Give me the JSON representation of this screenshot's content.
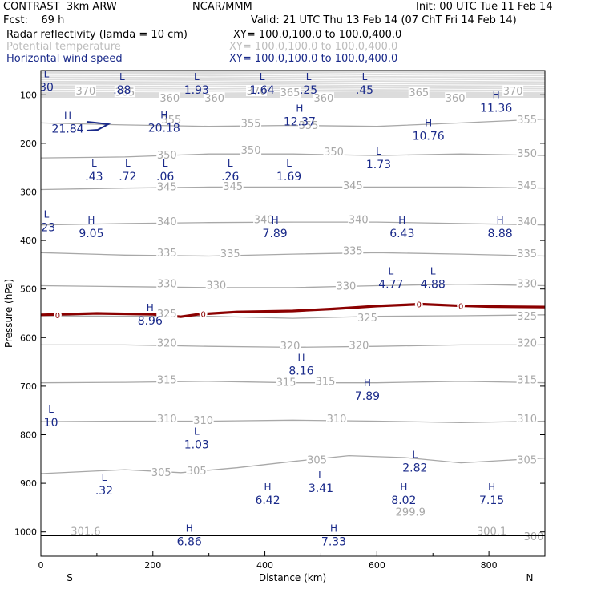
{
  "header": {
    "model": "CONTRAST  3km ARW",
    "org": "NCAR/MMM",
    "init": "Init: 00 UTC Tue 11 Feb 14",
    "fcst": "Fcst:    69 h",
    "valid": "Valid: 21 UTC Thu 13 Feb 14 (07 ChT Fri 14 Feb 14)",
    "fields": [
      {
        "name": "Radar reflectivity (lamda = 10 cm)",
        "xy": "XY= 100.0,100.0 to 100.0,400.0",
        "color": "#000000"
      },
      {
        "name": "Potential temperature",
        "xy": "XY= 100.0,100.0 to 100.0,400.0",
        "color": "#bdbdbd"
      },
      {
        "name": "Horizontal wind speed",
        "xy": "XY= 100.0,100.0 to 100.0,400.0",
        "color": "#1a2a8a"
      }
    ]
  },
  "chart_data": {
    "type": "cross-section",
    "xlabel": "Distance (km)",
    "ylabel": "Pressure (hPa)",
    "xlim": [
      0,
      900
    ],
    "ylim": [
      1050,
      50
    ],
    "x_ticks": [
      "0",
      "200",
      "400",
      "600",
      "800"
    ],
    "x_tick_values": [
      0,
      200,
      400,
      600,
      800
    ],
    "y_ticks": [
      "100",
      "200",
      "300",
      "400",
      "500",
      "600",
      "700",
      "800",
      "900",
      "1000"
    ],
    "y_tick_values": [
      100,
      200,
      300,
      400,
      500,
      600,
      700,
      800,
      900,
      1000
    ],
    "x_end_labels": {
      "left": "S",
      "right": "N"
    },
    "surface_pressure": 1007,
    "colors": {
      "theta": "#a8a8a8",
      "wind": "#1a2a8a",
      "zero_line": "#8b0000",
      "surface": "#000000"
    },
    "theta_contours": [
      {
        "value": 355,
        "points": [
          [
            0,
            158
          ],
          [
            150,
            162
          ],
          [
            300,
            165
          ],
          [
            450,
            163
          ],
          [
            600,
            165
          ],
          [
            750,
            158
          ],
          [
            900,
            150
          ]
        ]
      },
      {
        "value": 350,
        "points": [
          [
            0,
            230
          ],
          [
            150,
            228
          ],
          [
            300,
            222
          ],
          [
            450,
            222
          ],
          [
            600,
            225
          ],
          [
            750,
            222
          ],
          [
            900,
            225
          ]
        ]
      },
      {
        "value": 345,
        "points": [
          [
            0,
            295
          ],
          [
            150,
            292
          ],
          [
            300,
            290
          ],
          [
            450,
            290
          ],
          [
            600,
            290
          ],
          [
            750,
            290
          ],
          [
            900,
            292
          ]
        ]
      },
      {
        "value": 340,
        "points": [
          [
            0,
            368
          ],
          [
            150,
            365
          ],
          [
            300,
            363
          ],
          [
            450,
            362
          ],
          [
            600,
            362
          ],
          [
            750,
            365
          ],
          [
            900,
            368
          ]
        ]
      },
      {
        "value": 335,
        "points": [
          [
            0,
            425
          ],
          [
            150,
            430
          ],
          [
            300,
            432
          ],
          [
            450,
            428
          ],
          [
            600,
            425
          ],
          [
            750,
            428
          ],
          [
            900,
            432
          ]
        ]
      },
      {
        "value": 330,
        "points": [
          [
            0,
            493
          ],
          [
            150,
            495
          ],
          [
            300,
            497
          ],
          [
            450,
            497
          ],
          [
            600,
            493
          ],
          [
            750,
            490
          ],
          [
            900,
            493
          ]
        ]
      },
      {
        "value": 325,
        "points": [
          [
            0,
            555
          ],
          [
            150,
            556
          ],
          [
            300,
            556
          ],
          [
            450,
            560
          ],
          [
            600,
            556
          ],
          [
            750,
            555
          ],
          [
            900,
            553
          ]
        ]
      },
      {
        "value": 320,
        "points": [
          [
            0,
            615
          ],
          [
            150,
            615
          ],
          [
            300,
            618
          ],
          [
            450,
            620
          ],
          [
            600,
            618
          ],
          [
            750,
            615
          ],
          [
            900,
            615
          ]
        ]
      },
      {
        "value": 315,
        "points": [
          [
            0,
            693
          ],
          [
            150,
            692
          ],
          [
            300,
            690
          ],
          [
            450,
            693
          ],
          [
            600,
            693
          ],
          [
            750,
            690
          ],
          [
            900,
            693
          ]
        ]
      },
      {
        "value": 310,
        "points": [
          [
            0,
            773
          ],
          [
            150,
            772
          ],
          [
            300,
            772
          ],
          [
            450,
            770
          ],
          [
            600,
            772
          ],
          [
            750,
            775
          ],
          [
            900,
            772
          ]
        ]
      },
      {
        "value": 305,
        "points": [
          [
            0,
            880
          ],
          [
            150,
            872
          ],
          [
            250,
            878
          ],
          [
            350,
            868
          ],
          [
            450,
            855
          ],
          [
            550,
            843
          ],
          [
            650,
            847
          ],
          [
            750,
            858
          ],
          [
            900,
            848
          ]
        ]
      }
    ],
    "theta_labels": [
      {
        "text": "370",
        "x": 80,
        "p": 93
      },
      {
        "text": "365",
        "x": 150,
        "p": 95
      },
      {
        "text": "360",
        "x": 230,
        "p": 108
      },
      {
        "text": "360",
        "x": 310,
        "p": 108
      },
      {
        "text": "370",
        "x": 385,
        "p": 93
      },
      {
        "text": "365",
        "x": 445,
        "p": 96
      },
      {
        "text": "360",
        "x": 505,
        "p": 108
      },
      {
        "text": "365",
        "x": 675,
        "p": 96
      },
      {
        "text": "360",
        "x": 740,
        "p": 108
      },
      {
        "text": "370",
        "x": 843,
        "p": 93
      },
      {
        "text": "355",
        "x": 233,
        "p": 152
      },
      {
        "text": "355",
        "x": 375,
        "p": 160
      },
      {
        "text": "355",
        "x": 478,
        "p": 164
      },
      {
        "text": "355",
        "x": 868,
        "p": 152
      },
      {
        "text": "350",
        "x": 225,
        "p": 225
      },
      {
        "text": "350",
        "x": 375,
        "p": 215
      },
      {
        "text": "350",
        "x": 523,
        "p": 218
      },
      {
        "text": "350",
        "x": 868,
        "p": 222
      },
      {
        "text": "345",
        "x": 225,
        "p": 290
      },
      {
        "text": "345",
        "x": 343,
        "p": 289
      },
      {
        "text": "345",
        "x": 557,
        "p": 288
      },
      {
        "text": "345",
        "x": 868,
        "p": 288
      },
      {
        "text": "340",
        "x": 225,
        "p": 362
      },
      {
        "text": "340",
        "x": 398,
        "p": 358
      },
      {
        "text": "340",
        "x": 567,
        "p": 358
      },
      {
        "text": "340",
        "x": 868,
        "p": 362
      },
      {
        "text": "335",
        "x": 225,
        "p": 426
      },
      {
        "text": "335",
        "x": 338,
        "p": 428
      },
      {
        "text": "335",
        "x": 557,
        "p": 422
      },
      {
        "text": "335",
        "x": 868,
        "p": 428
      },
      {
        "text": "330",
        "x": 225,
        "p": 490
      },
      {
        "text": "330",
        "x": 313,
        "p": 493
      },
      {
        "text": "330",
        "x": 545,
        "p": 495
      },
      {
        "text": "330",
        "x": 868,
        "p": 490
      },
      {
        "text": "325",
        "x": 225,
        "p": 552
      },
      {
        "text": "325",
        "x": 583,
        "p": 560
      },
      {
        "text": "325",
        "x": 868,
        "p": 557
      },
      {
        "text": "320",
        "x": 225,
        "p": 612
      },
      {
        "text": "320",
        "x": 445,
        "p": 618
      },
      {
        "text": "320",
        "x": 568,
        "p": 617
      },
      {
        "text": "320",
        "x": 868,
        "p": 612
      },
      {
        "text": "315",
        "x": 225,
        "p": 688
      },
      {
        "text": "315",
        "x": 438,
        "p": 693
      },
      {
        "text": "315",
        "x": 508,
        "p": 691
      },
      {
        "text": "315",
        "x": 868,
        "p": 688
      },
      {
        "text": "310",
        "x": 225,
        "p": 768
      },
      {
        "text": "310",
        "x": 290,
        "p": 771
      },
      {
        "text": "310",
        "x": 528,
        "p": 768
      },
      {
        "text": "310",
        "x": 868,
        "p": 768
      },
      {
        "text": "305",
        "x": 215,
        "p": 878
      },
      {
        "text": "305",
        "x": 278,
        "p": 875
      },
      {
        "text": "305",
        "x": 493,
        "p": 853
      },
      {
        "text": "305",
        "x": 868,
        "p": 853
      },
      {
        "text": "301.6",
        "x": 80,
        "p": 1000
      },
      {
        "text": "299.9",
        "x": 660,
        "p": 960
      },
      {
        "text": "300.1",
        "x": 805,
        "p": 1000
      },
      {
        "text": "300",
        "x": 880,
        "p": 1010
      }
    ],
    "wind_extrema": [
      {
        "type": "L",
        "value": "30",
        "x": 10,
        "p": 64
      },
      {
        "type": "L",
        "value": ".88",
        "x": 145,
        "p": 70
      },
      {
        "type": "L",
        "value": "1.93",
        "x": 278,
        "p": 70
      },
      {
        "type": "L",
        "value": "1.64",
        "x": 395,
        "p": 70
      },
      {
        "type": "L",
        "value": ".25",
        "x": 478,
        "p": 70
      },
      {
        "type": "L",
        "value": ".45",
        "x": 578,
        "p": 70
      },
      {
        "type": "H",
        "value": "11.36",
        "x": 813,
        "p": 107
      },
      {
        "type": "H",
        "value": "21.84",
        "x": 48,
        "p": 150
      },
      {
        "type": "H",
        "value": "20.18",
        "x": 220,
        "p": 148
      },
      {
        "type": "H",
        "value": "12.37",
        "x": 462,
        "p": 135
      },
      {
        "type": "H",
        "value": "10.76",
        "x": 692,
        "p": 165
      },
      {
        "type": "L",
        "value": ".43",
        "x": 95,
        "p": 248
      },
      {
        "type": "L",
        "value": ".72",
        "x": 155,
        "p": 248
      },
      {
        "type": "L",
        "value": ".06",
        "x": 222,
        "p": 248
      },
      {
        "type": "L",
        "value": ".26",
        "x": 338,
        "p": 248
      },
      {
        "type": "L",
        "value": "1.69",
        "x": 443,
        "p": 248
      },
      {
        "type": "L",
        "value": "1.73",
        "x": 603,
        "p": 223
      },
      {
        "type": "L",
        "value": ".23",
        "x": 10,
        "p": 353
      },
      {
        "type": "H",
        "value": "9.05",
        "x": 90,
        "p": 365
      },
      {
        "type": "H",
        "value": "7.89",
        "x": 418,
        "p": 365
      },
      {
        "type": "H",
        "value": "6.43",
        "x": 645,
        "p": 365
      },
      {
        "type": "H",
        "value": "8.88",
        "x": 820,
        "p": 365
      },
      {
        "type": "L",
        "value": "4.77",
        "x": 625,
        "p": 470
      },
      {
        "type": "L",
        "value": "4.88",
        "x": 700,
        "p": 470
      },
      {
        "type": "H",
        "value": "8.96",
        "x": 195,
        "p": 545
      },
      {
        "type": "H",
        "value": "8.16",
        "x": 465,
        "p": 648
      },
      {
        "type": "H",
        "value": "7.89",
        "x": 583,
        "p": 700
      },
      {
        "type": "L",
        "value": "10",
        "x": 18,
        "p": 755
      },
      {
        "type": "L",
        "value": "1.03",
        "x": 278,
        "p": 800
      },
      {
        "type": "L",
        "value": "2.82",
        "x": 668,
        "p": 848
      },
      {
        "type": "L",
        "value": ".32",
        "x": 113,
        "p": 895
      },
      {
        "type": "L",
        "value": "3.41",
        "x": 500,
        "p": 890
      },
      {
        "type": "H",
        "value": "6.42",
        "x": 405,
        "p": 915
      },
      {
        "type": "H",
        "value": "8.02",
        "x": 648,
        "p": 915
      },
      {
        "type": "H",
        "value": "7.15",
        "x": 805,
        "p": 915
      },
      {
        "type": "H",
        "value": "6.86",
        "x": 265,
        "p": 1000
      },
      {
        "type": "H",
        "value": "7.33",
        "x": 523,
        "p": 1000
      }
    ],
    "zero_contour": {
      "value": "0",
      "points": [
        [
          0,
          553
        ],
        [
          100,
          550
        ],
        [
          200,
          552
        ],
        [
          250,
          557
        ],
        [
          280,
          552
        ],
        [
          350,
          547
        ],
        [
          400,
          546
        ],
        [
          450,
          545
        ],
        [
          520,
          541
        ],
        [
          600,
          535
        ],
        [
          680,
          531
        ],
        [
          740,
          534
        ],
        [
          800,
          536
        ],
        [
          900,
          537
        ]
      ],
      "label_positions": [
        [
          30,
          553
        ],
        [
          290,
          551
        ],
        [
          675,
          531
        ],
        [
          750,
          534
        ]
      ]
    }
  }
}
